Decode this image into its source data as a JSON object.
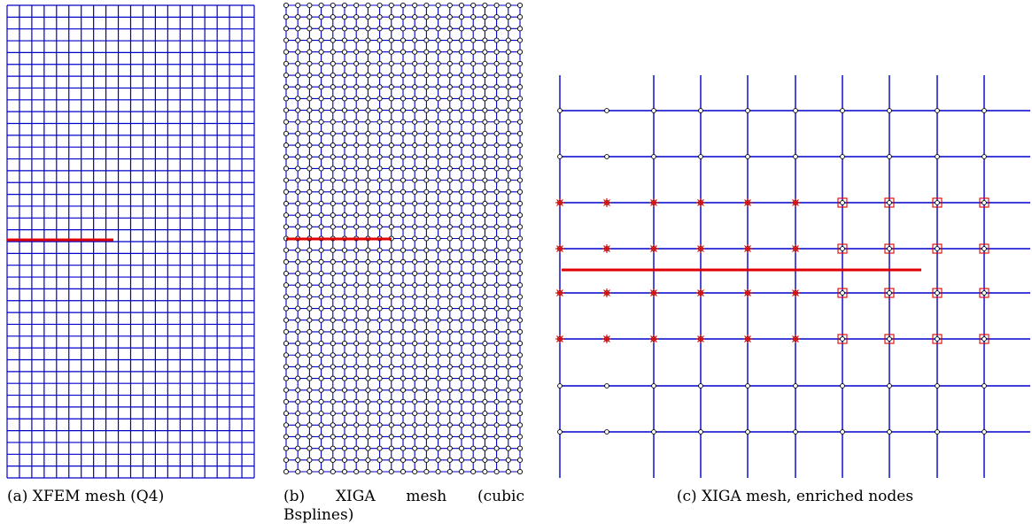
{
  "figure": {
    "panel_a": {
      "caption": "(a) XFEM mesh (Q4)",
      "mesh_color": "#0000cc",
      "crack_color": "#e00000"
    },
    "panel_b": {
      "caption_words": [
        "(b)",
        "XIGA",
        "mesh",
        "(cubic"
      ],
      "caption_line2": "Bsplines)",
      "mesh_color": "#0000cc",
      "crack_color": "#e00000",
      "node_style": "open-circle"
    },
    "panel_c": {
      "caption": "(c) XIGA mesh, enriched nodes",
      "mesh_color": "#0000cc",
      "crack_color": "#e00000",
      "enrichment_markers": {
        "heaviside": "asterisk-icon",
        "crack_tip": "square-icon",
        "marker_color": "#e00000"
      }
    }
  }
}
